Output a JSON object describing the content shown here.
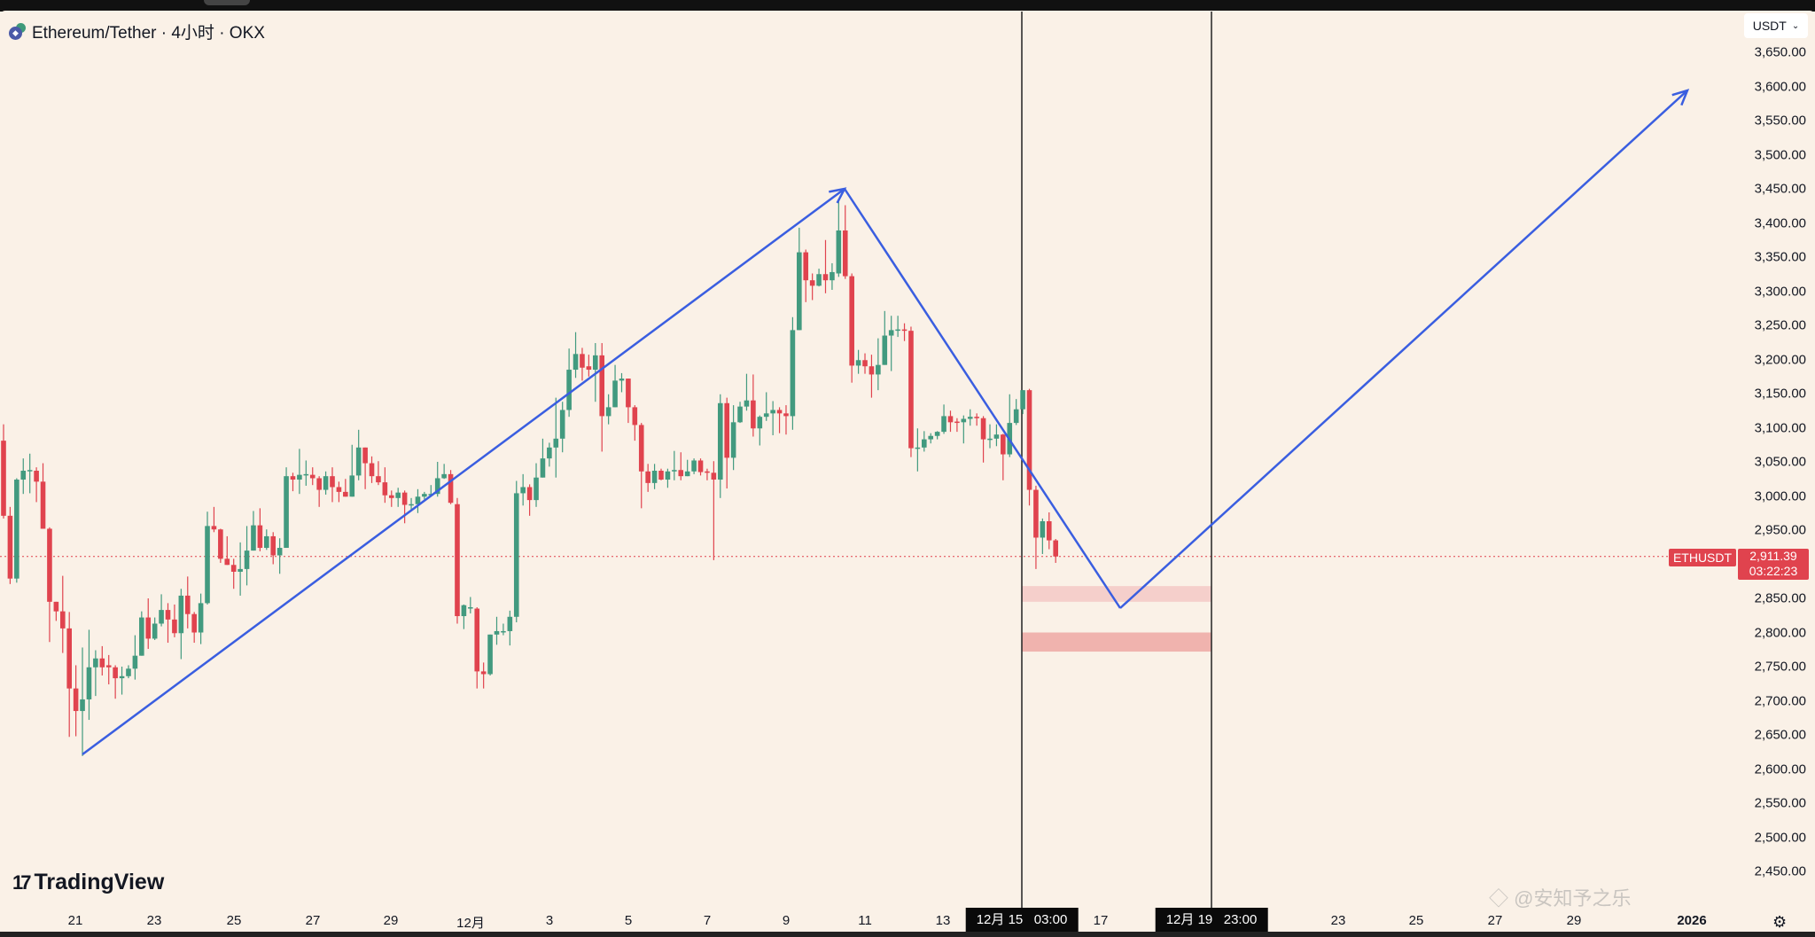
{
  "legend": {
    "title": "Ethereum/Tether · 4小时 · OKX",
    "coin_icon": "eth-usdt-icon"
  },
  "currency_selector": {
    "value": "USDT"
  },
  "last_price": {
    "symbol": "ETHUSDT",
    "price": "2,911.39",
    "countdown": "03:22:23"
  },
  "price_axis": [
    "3,650.00",
    "3,600.00",
    "3,550.00",
    "3,500.00",
    "3,450.00",
    "3,400.00",
    "3,350.00",
    "3,300.00",
    "3,250.00",
    "3,200.00",
    "3,150.00",
    "3,100.00",
    "3,050.00",
    "3,000.00",
    "2,950.00",
    "2,850.00",
    "2,800.00",
    "2,750.00",
    "2,700.00",
    "2,650.00",
    "2,600.00",
    "2,550.00",
    "2,500.00",
    "2,450.00"
  ],
  "time_axis": [
    "21",
    "23",
    "25",
    "27",
    "29",
    "12月",
    "3",
    "5",
    "7",
    "9",
    "11",
    "13",
    "17",
    "23",
    "25",
    "27",
    "29",
    "2026"
  ],
  "time_cursors": [
    "12月 15   03:00",
    "12月 19   23:00"
  ],
  "branding": {
    "logo": "TradingView",
    "watermark": "@安知予之乐"
  },
  "colors": {
    "up": "#429a7f",
    "down": "#e0434e",
    "drawing": "#3a5ee0",
    "zone_light": "#f5cfcb",
    "zone_dark": "#f0b3ae",
    "background": "#faf1e7"
  },
  "chart_data": {
    "type": "candlestick",
    "symbol": "ETHUSDT",
    "interval": "4小时",
    "ylim": [
      2450,
      3650
    ],
    "last_price": 2911.39,
    "candles_ohlc": [
      [
        3081,
        3105,
        2967,
        2971
      ],
      [
        2971,
        2984,
        2871,
        2879
      ],
      [
        2879,
        3026,
        2873,
        3024
      ],
      [
        3024,
        3055,
        3003,
        3037
      ],
      [
        3038,
        3062,
        3004,
        3038
      ],
      [
        3037,
        3042,
        2991,
        3021
      ],
      [
        3021,
        3048,
        2952,
        2952
      ],
      [
        2952,
        2954,
        2786,
        2845
      ],
      [
        2845,
        2845,
        2817,
        2831
      ],
      [
        2831,
        2883,
        2770,
        2806
      ],
      [
        2806,
        2830,
        2647,
        2718
      ],
      [
        2718,
        2752,
        2648,
        2685
      ],
      [
        2685,
        2778,
        2619,
        2702
      ],
      [
        2702,
        2804,
        2672,
        2749
      ],
      [
        2749,
        2774,
        2707,
        2762
      ],
      [
        2762,
        2780,
        2737,
        2749
      ],
      [
        2752,
        2767,
        2724,
        2749
      ],
      [
        2749,
        2752,
        2703,
        2733
      ],
      [
        2733,
        2750,
        2709,
        2736
      ],
      [
        2736,
        2752,
        2733,
        2747
      ],
      [
        2747,
        2796,
        2731,
        2766
      ],
      [
        2766,
        2831,
        2766,
        2822
      ],
      [
        2822,
        2850,
        2776,
        2791
      ],
      [
        2791,
        2822,
        2789,
        2813
      ],
      [
        2813,
        2856,
        2809,
        2833
      ],
      [
        2833,
        2843,
        2785,
        2819
      ],
      [
        2819,
        2841,
        2793,
        2799
      ],
      [
        2799,
        2864,
        2761,
        2854
      ],
      [
        2854,
        2882,
        2806,
        2827
      ],
      [
        2827,
        2830,
        2785,
        2800
      ],
      [
        2800,
        2857,
        2783,
        2843
      ],
      [
        2843,
        2977,
        2841,
        2956
      ],
      [
        2956,
        2984,
        2947,
        2951
      ],
      [
        2951,
        2952,
        2902,
        2908
      ],
      [
        2908,
        2941,
        2899,
        2899
      ],
      [
        2899,
        2908,
        2864,
        2889
      ],
      [
        2889,
        2932,
        2854,
        2893
      ],
      [
        2893,
        2956,
        2869,
        2920
      ],
      [
        2920,
        2978,
        2920,
        2957
      ],
      [
        2957,
        2982,
        2919,
        2924
      ],
      [
        2924,
        2951,
        2921,
        2941
      ],
      [
        2941,
        2947,
        2900,
        2913
      ],
      [
        2913,
        2938,
        2886,
        2924
      ],
      [
        2924,
        3042,
        2924,
        3029
      ],
      [
        3029,
        3034,
        3007,
        3024
      ],
      [
        3024,
        3069,
        3003,
        3031
      ],
      [
        3031,
        3052,
        3015,
        3032
      ],
      [
        3031,
        3042,
        3016,
        3026
      ],
      [
        3026,
        3029,
        2984,
        3009
      ],
      [
        3009,
        3036,
        3002,
        3029
      ],
      [
        3029,
        3042,
        2991,
        3013
      ],
      [
        3013,
        3021,
        2991,
        3006
      ],
      [
        3006,
        3025,
        2999,
        2999
      ],
      [
        2999,
        3075,
        2999,
        3030
      ],
      [
        3030,
        3097,
        3023,
        3071
      ],
      [
        3071,
        3071,
        3010,
        3048
      ],
      [
        3048,
        3058,
        3019,
        3029
      ],
      [
        3029,
        3051,
        3016,
        3020
      ],
      [
        3020,
        3042,
        2990,
        3001
      ],
      [
        3001,
        3008,
        2984,
        2997
      ],
      [
        2997,
        3012,
        2984,
        3005
      ],
      [
        3005,
        3008,
        2960,
        2987
      ],
      [
        2988,
        2997,
        2980,
        2988
      ],
      [
        2988,
        3010,
        2975,
        2999
      ],
      [
        2999,
        3006,
        2995,
        3003
      ],
      [
        3003,
        3016,
        2999,
        3003
      ],
      [
        3003,
        3050,
        2999,
        3026
      ],
      [
        3026,
        3047,
        3025,
        3032
      ],
      [
        3032,
        3038,
        2988,
        2990
      ],
      [
        2988,
        2997,
        2813,
        2824
      ],
      [
        2824,
        2841,
        2805,
        2840
      ],
      [
        2837,
        2852,
        2828,
        2837
      ],
      [
        2835,
        2837,
        2718,
        2743
      ],
      [
        2743,
        2756,
        2718,
        2739
      ],
      [
        2739,
        2797,
        2737,
        2797
      ],
      [
        2797,
        2823,
        2782,
        2802
      ],
      [
        2802,
        2813,
        2796,
        2802
      ],
      [
        2802,
        2832,
        2781,
        2823
      ],
      [
        2823,
        3022,
        2815,
        3004
      ],
      [
        3004,
        3032,
        2986,
        3013
      ],
      [
        3013,
        3017,
        2971,
        2994
      ],
      [
        2994,
        3048,
        2984,
        3027
      ],
      [
        3027,
        3084,
        3027,
        3055
      ],
      [
        3055,
        3078,
        3043,
        3071
      ],
      [
        3071,
        3144,
        3027,
        3084
      ],
      [
        3084,
        3138,
        3064,
        3126
      ],
      [
        3126,
        3216,
        3116,
        3185
      ],
      [
        3185,
        3240,
        3173,
        3208
      ],
      [
        3208,
        3217,
        3169,
        3188
      ],
      [
        3190,
        3207,
        3175,
        3185
      ],
      [
        3185,
        3224,
        3138,
        3206
      ],
      [
        3206,
        3224,
        3065,
        3117
      ],
      [
        3117,
        3149,
        3105,
        3130
      ],
      [
        3130,
        3192,
        3130,
        3169
      ],
      [
        3169,
        3180,
        3152,
        3172
      ],
      [
        3172,
        3172,
        3107,
        3130
      ],
      [
        3130,
        3133,
        3081,
        3104
      ],
      [
        3104,
        3107,
        2982,
        3036
      ],
      [
        3036,
        3047,
        3006,
        3019
      ],
      [
        3019,
        3047,
        3010,
        3037
      ],
      [
        3037,
        3040,
        3023,
        3024
      ],
      [
        3024,
        3040,
        3012,
        3036
      ],
      [
        3036,
        3066,
        3023,
        3038
      ],
      [
        3038,
        3064,
        3023,
        3029
      ],
      [
        3029,
        3053,
        3029,
        3036
      ],
      [
        3036,
        3055,
        3032,
        3052
      ],
      [
        3052,
        3055,
        3030,
        3035
      ],
      [
        3036,
        3040,
        3023,
        3034
      ],
      [
        3034,
        3051,
        2906,
        3024
      ],
      [
        3024,
        3149,
        2997,
        3136
      ],
      [
        3136,
        3144,
        3011,
        3056
      ],
      [
        3056,
        3133,
        3038,
        3108
      ],
      [
        3108,
        3138,
        3107,
        3131
      ],
      [
        3131,
        3179,
        3125,
        3140
      ],
      [
        3140,
        3178,
        3087,
        3099
      ],
      [
        3099,
        3118,
        3074,
        3116
      ],
      [
        3116,
        3152,
        3110,
        3121
      ],
      [
        3121,
        3139,
        3089,
        3126
      ],
      [
        3126,
        3130,
        3092,
        3121
      ],
      [
        3121,
        3133,
        3090,
        3117
      ],
      [
        3117,
        3262,
        3097,
        3243
      ],
      [
        3243,
        3393,
        3243,
        3357
      ],
      [
        3357,
        3361,
        3284,
        3316
      ],
      [
        3316,
        3326,
        3287,
        3308
      ],
      [
        3308,
        3333,
        3307,
        3325
      ],
      [
        3325,
        3375,
        3297,
        3316
      ],
      [
        3316,
        3341,
        3302,
        3328
      ],
      [
        3326,
        3435,
        3321,
        3389
      ],
      [
        3389,
        3426,
        3318,
        3322
      ],
      [
        3322,
        3326,
        3166,
        3191
      ],
      [
        3191,
        3214,
        3179,
        3199
      ],
      [
        3199,
        3209,
        3179,
        3190
      ],
      [
        3190,
        3207,
        3144,
        3178
      ],
      [
        3178,
        3231,
        3155,
        3192
      ],
      [
        3192,
        3271,
        3192,
        3235
      ],
      [
        3235,
        3264,
        3183,
        3243
      ],
      [
        3244,
        3264,
        3233,
        3244
      ],
      [
        3244,
        3253,
        3227,
        3242
      ],
      [
        3242,
        3248,
        3057,
        3070
      ],
      [
        3071,
        3099,
        3036,
        3071
      ],
      [
        3071,
        3095,
        3065,
        3083
      ],
      [
        3083,
        3092,
        3077,
        3088
      ],
      [
        3088,
        3095,
        3083,
        3094
      ],
      [
        3094,
        3134,
        3091,
        3117
      ],
      [
        3117,
        3125,
        3094,
        3108
      ],
      [
        3109,
        3114,
        3094,
        3108
      ],
      [
        3108,
        3118,
        3077,
        3113
      ],
      [
        3113,
        3127,
        3103,
        3116
      ],
      [
        3116,
        3121,
        3103,
        3114
      ],
      [
        3114,
        3117,
        3049,
        3083
      ],
      [
        3084,
        3105,
        3070,
        3084
      ],
      [
        3084,
        3105,
        3073,
        3090
      ],
      [
        3090,
        3091,
        3023,
        3061
      ],
      [
        3061,
        3149,
        3057,
        3107
      ],
      [
        3107,
        3142,
        3104,
        3127
      ],
      [
        3127,
        3155,
        3120,
        3155
      ],
      [
        3155,
        3157,
        2986,
        3009
      ],
      [
        3009,
        3015,
        2893,
        2939
      ],
      [
        2939,
        2967,
        2915,
        2963
      ],
      [
        2963,
        2976,
        2922,
        2935
      ],
      [
        2935,
        2937,
        2902,
        2911.39
      ]
    ],
    "zones": [
      {
        "from": 2845,
        "to": 2868
      },
      {
        "from": 2772,
        "to": 2800
      }
    ],
    "drawings": [
      {
        "type": "arrow",
        "from": {
          "price": 2612
        },
        "to": {
          "price": 3448
        }
      },
      {
        "type": "line",
        "from": {
          "price": 3448
        },
        "to": {
          "price": 2835
        }
      },
      {
        "type": "arrow",
        "from": {
          "price": 2835
        },
        "to": {
          "price": 3595
        }
      }
    ]
  }
}
